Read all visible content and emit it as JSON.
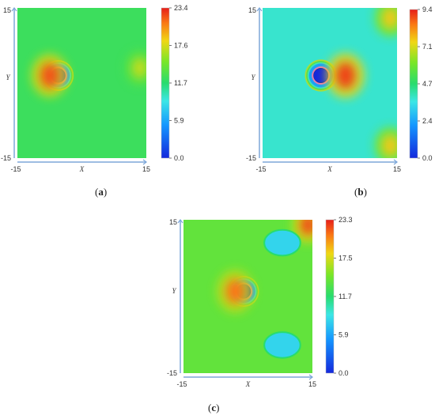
{
  "chart_data": [
    {
      "type": "heatmap",
      "panel_label": "a",
      "xlabel": "X",
      "ylabel": "Y",
      "xlim": [
        -15,
        15
      ],
      "ylim": [
        -15,
        15
      ],
      "x_ticks": [
        "-15",
        "15"
      ],
      "y_ticks": [
        "15",
        "-15"
      ],
      "colorbar": {
        "min": 0.0,
        "max": 23.4,
        "ticks": [
          "23.4",
          "17.6",
          "11.7",
          "5.9",
          "0.0"
        ]
      },
      "features": [
        {
          "kind": "cylinder",
          "x": -5.5,
          "y": 1.5,
          "value": 0.0
        },
        {
          "kind": "hotspot",
          "x": -7.5,
          "y": 1.5,
          "value": 22.0
        },
        {
          "kind": "hotspot",
          "x": 13.5,
          "y": 3.0,
          "value": 17.0
        }
      ],
      "background_value": 12.5
    },
    {
      "type": "heatmap",
      "panel_label": "b",
      "xlabel": "X",
      "ylabel": "Y",
      "xlim": [
        -15,
        15
      ],
      "ylim": [
        -15,
        15
      ],
      "x_ticks": [
        "-15",
        "15"
      ],
      "y_ticks": [
        "15",
        "-15"
      ],
      "colorbar": {
        "min": 0.0,
        "max": 9.4,
        "ticks": [
          "9.4",
          "7.1",
          "4.7",
          "2.4",
          "0.0"
        ]
      },
      "features": [
        {
          "kind": "cylinder",
          "x": -2.0,
          "y": 1.5,
          "value": 0.0
        },
        {
          "kind": "hotspot",
          "x": 3.5,
          "y": 1.5,
          "value": 9.0
        },
        {
          "kind": "hotspot",
          "x": 13.5,
          "y": 13.0,
          "value": 7.5
        },
        {
          "kind": "hotspot",
          "x": 13.5,
          "y": -12.5,
          "value": 7.5
        }
      ],
      "background_value": 3.8
    },
    {
      "type": "heatmap",
      "panel_label": "c",
      "xlabel": "X",
      "ylabel": "Y",
      "xlim": [
        -15,
        15
      ],
      "ylim": [
        -15,
        15
      ],
      "x_ticks": [
        "-15",
        "15"
      ],
      "y_ticks": [
        "15",
        "-15"
      ],
      "colorbar": {
        "min": 0.0,
        "max": 23.3,
        "ticks": [
          "23.3",
          "17.5",
          "11.7",
          "5.9",
          "0.0"
        ]
      },
      "features": [
        {
          "kind": "cylinder",
          "x": -1.0,
          "y": 1.0,
          "value": 0.0
        },
        {
          "kind": "hotspot",
          "x": -3.0,
          "y": 1.0,
          "value": 21.0
        },
        {
          "kind": "hotspot",
          "x": 14.0,
          "y": 14.0,
          "value": 22.0
        },
        {
          "kind": "low_region",
          "x": 8.0,
          "y": 10.5,
          "value": 8.0
        },
        {
          "kind": "low_region",
          "x": 8.0,
          "y": -9.5,
          "value": 8.0
        }
      ],
      "background_value": 14.0
    }
  ]
}
